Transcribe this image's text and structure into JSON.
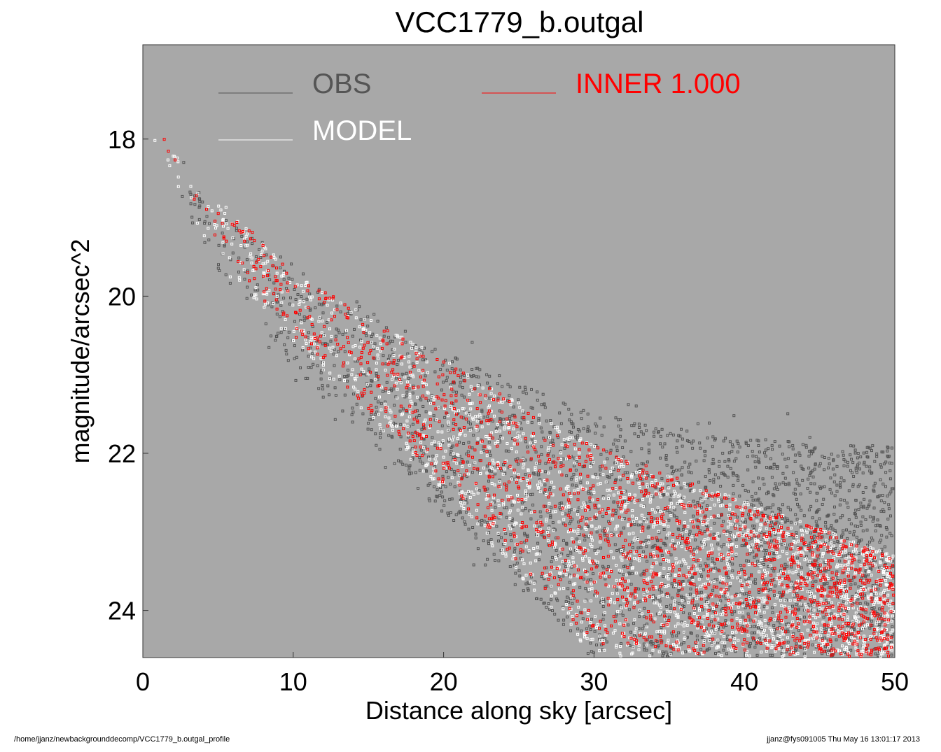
{
  "chart_data": {
    "type": "scatter",
    "title": "VCC1779_b.outgal",
    "xlabel": "Distance along sky [arcsec]",
    "ylabel": "magnitude/arcsec^2",
    "xlim": [
      0,
      50
    ],
    "ylim": [
      24.6,
      16.8
    ],
    "y_inverted": true,
    "xticks": [
      0,
      10,
      20,
      30,
      40,
      50
    ],
    "yticks": [
      18,
      20,
      22,
      24
    ],
    "background_color": "#a8a8a8",
    "legend_placement": "top",
    "series": [
      {
        "name": "OBS",
        "color": "#555555",
        "envelope": [
          {
            "x": 0.4,
            "y_bright": 17.9,
            "y_faint": 17.9
          },
          {
            "x": 5,
            "y_bright": 18.9,
            "y_faint": 19.7
          },
          {
            "x": 10,
            "y_bright": 19.6,
            "y_faint": 20.9
          },
          {
            "x": 20,
            "y_bright": 20.7,
            "y_faint": 22.8
          },
          {
            "x": 30,
            "y_bright": 21.5,
            "y_faint": 24.6
          },
          {
            "x": 40,
            "y_bright": 21.8,
            "y_faint": 24.6
          },
          {
            "x": 50,
            "y_bright": 21.9,
            "y_faint": 24.6
          }
        ]
      },
      {
        "name": "MODEL",
        "color": "#ffffff",
        "envelope": [
          {
            "x": 0.4,
            "y_bright": 17.9,
            "y_faint": 17.9
          },
          {
            "x": 5,
            "y_bright": 18.7,
            "y_faint": 19.6
          },
          {
            "x": 10,
            "y_bright": 19.7,
            "y_faint": 20.6
          },
          {
            "x": 20,
            "y_bright": 20.8,
            "y_faint": 22.5
          },
          {
            "x": 30,
            "y_bright": 21.9,
            "y_faint": 24.6
          },
          {
            "x": 40,
            "y_bright": 22.6,
            "y_faint": 24.6
          },
          {
            "x": 50,
            "y_bright": 23.3,
            "y_faint": 24.6
          }
        ]
      },
      {
        "name": "INNER  1.000",
        "color": "#ff0000",
        "envelope": [
          {
            "x": 0.9,
            "y_bright": 17.9,
            "y_faint": 17.9
          },
          {
            "x": 5,
            "y_bright": 18.7,
            "y_faint": 19.4
          },
          {
            "x": 10,
            "y_bright": 19.7,
            "y_faint": 20.5
          },
          {
            "x": 20,
            "y_bright": 20.8,
            "y_faint": 22.4
          },
          {
            "x": 30,
            "y_bright": 21.9,
            "y_faint": 24.4
          },
          {
            "x": 40,
            "y_bright": 22.6,
            "y_faint": 24.6
          },
          {
            "x": 50,
            "y_bright": 23.3,
            "y_faint": 24.6
          }
        ]
      }
    ]
  },
  "footer": {
    "path": "/home/jjanz/newbackgrounddecomp/VCC1779_b.outgal_profile",
    "stamp": "jjanz@fys091005  Thu May 16 13:01:17 2013"
  }
}
